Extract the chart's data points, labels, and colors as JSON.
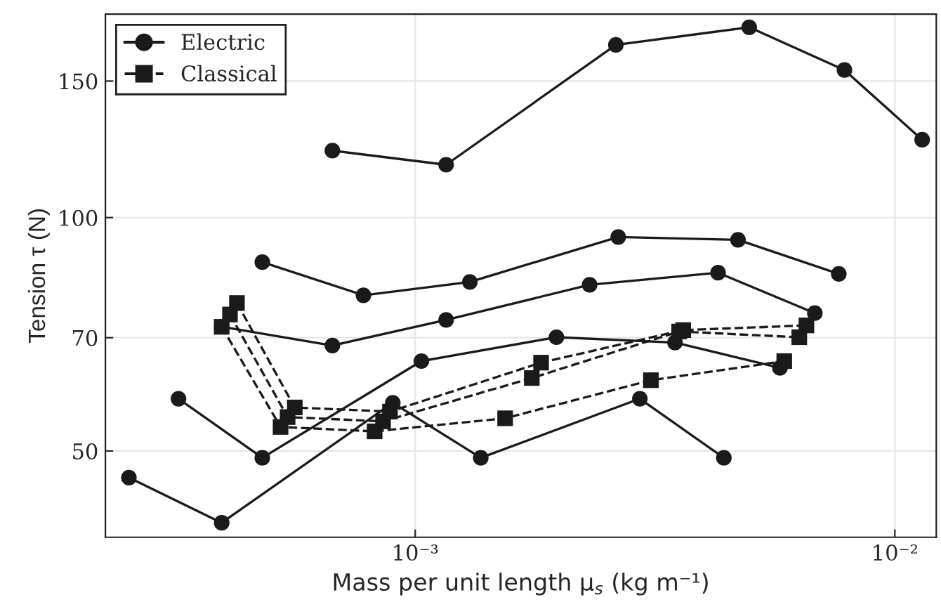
{
  "chart_data": {
    "type": "line",
    "xlabel": "Mass per unit length μ$_{s}$ (kg m⁻¹)",
    "ylabel": "Tension τ (N)",
    "log": "xy",
    "xlim": [
      0.000226,
      0.0122
    ],
    "ylim": [
      38.7,
      183
    ],
    "xticks": [
      {
        "value": 0.001,
        "label": "10⁻³"
      },
      {
        "value": 0.01,
        "label": "10⁻²"
      }
    ],
    "yticks": [
      50,
      70,
      100,
      150
    ],
    "grid": true,
    "legend": "top left",
    "series": [
      {
        "name": "Electric",
        "color": "#1a1a1a",
        "marker": "circle",
        "line_style": "solid",
        "x": [
          0.000672,
          0.00116,
          0.00262,
          0.00497,
          0.00785,
          0.0114
        ],
        "values": [
          122,
          117,
          167,
          176,
          155,
          126
        ]
      },
      {
        "color": "#1a1a1a",
        "marker": "circle",
        "line_style": "solid",
        "x": [
          0.00048,
          0.00078,
          0.0013,
          0.00265,
          0.00471,
          0.00764
        ],
        "values": [
          87.6,
          79.4,
          82.6,
          94.4,
          93.6,
          84.6
        ]
      },
      {
        "color": "#1a1a1a",
        "marker": "circle",
        "line_style": "solid",
        "x": [
          0.000395,
          0.000672,
          0.00116,
          0.00231,
          0.00428,
          0.00681
        ],
        "values": [
          72.3,
          68.4,
          73.8,
          81.9,
          84.9,
          75.3
        ]
      },
      {
        "color": "#1a1a1a",
        "marker": "circle",
        "line_style": "solid",
        "x": [
          0.000321,
          0.00048,
          0.00103,
          0.00197,
          0.00348,
          0.00576
        ],
        "values": [
          58.4,
          49.0,
          65.3,
          70.1,
          69.0,
          64.0
        ]
      },
      {
        "color": "#1a1a1a",
        "marker": "circle",
        "line_style": "solid",
        "x": [
          0.000253,
          0.000395,
          0.000898,
          0.00137,
          0.00294,
          0.0044
        ],
        "values": [
          46.2,
          40.4,
          57.7,
          49.0,
          58.4,
          49.0
        ]
      },
      {
        "name": "Classical",
        "color": "#1a1a1a",
        "marker": "square",
        "line_style": "dashed",
        "x": [
          0.000395,
          0.000524,
          0.000823,
          0.00154,
          0.0031,
          0.00588
        ],
        "values": [
          72.3,
          53.7,
          53.0,
          55.1,
          61.7,
          65.3
        ]
      },
      {
        "color": "#1a1a1a",
        "marker": "square",
        "line_style": "dashed",
        "x": [
          0.000411,
          0.000542,
          0.000857,
          0.00175,
          0.00355,
          0.00632
        ],
        "values": [
          75.0,
          55.3,
          54.6,
          62.1,
          71.3,
          70.1
        ]
      },
      {
        "color": "#1a1a1a",
        "marker": "square",
        "line_style": "dashed",
        "x": [
          0.000425,
          0.000561,
          0.000886,
          0.00183,
          0.00362,
          0.00654
        ],
        "values": [
          77.6,
          56.9,
          56.2,
          65.0,
          71.6,
          72.6
        ]
      }
    ]
  }
}
